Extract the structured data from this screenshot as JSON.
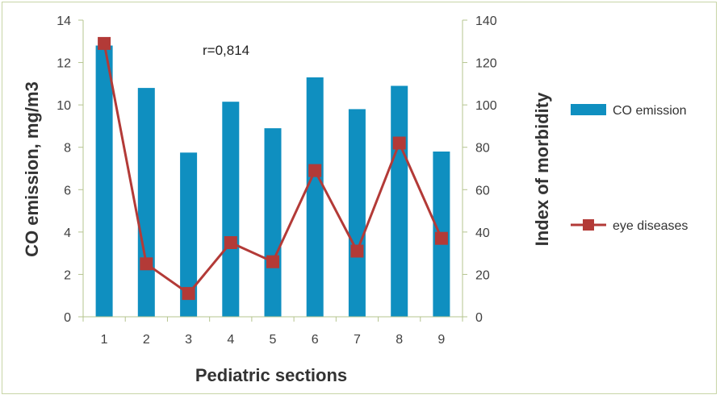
{
  "chart_data": {
    "type": "bar",
    "categories": [
      "1",
      "2",
      "3",
      "4",
      "5",
      "6",
      "7",
      "8",
      "9"
    ],
    "series": [
      {
        "name": "CO emission",
        "kind": "bar",
        "axis": "left",
        "color": "#0f8fc0",
        "values": [
          12.8,
          10.8,
          7.75,
          10.15,
          8.9,
          11.3,
          9.8,
          10.9,
          7.8
        ]
      },
      {
        "name": "eye diseases",
        "kind": "line",
        "axis": "right",
        "color": "#b33a37",
        "values": [
          129,
          25,
          11,
          35,
          26,
          69,
          31,
          82,
          37
        ]
      }
    ],
    "xlabel": "Pediatric sections",
    "ylabel": "CO emission, mg/m3",
    "y2label": "Index of morbidity",
    "ylim": [
      0,
      14
    ],
    "y2lim": [
      0,
      140
    ],
    "yticks": [
      "0",
      "2",
      "4",
      "6",
      "8",
      "10",
      "12",
      "14"
    ],
    "y2ticks": [
      "0",
      "20",
      "40",
      "60",
      "80",
      "100",
      "120",
      "140"
    ],
    "annotation": "r=0,814",
    "legend_position": "right",
    "grid": false
  }
}
